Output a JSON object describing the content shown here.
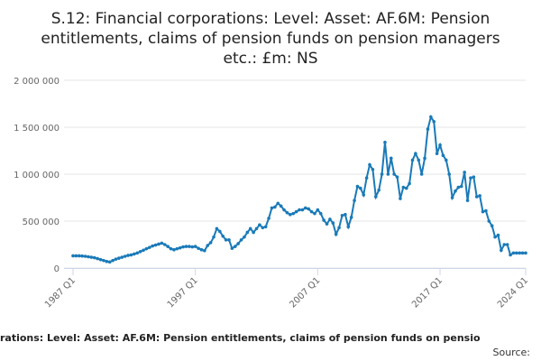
{
  "chart_data": {
    "type": "line",
    "title": [
      "S.12: Financial corporations: Level: Asset: AF.6M: Pension",
      "entitlements, claims of pension funds on pension managers",
      "etc.: £m: NS"
    ],
    "caption": "rations: Level: Asset: AF.6M: Pension entitlements, claims of pension funds on pensio",
    "source": "Source:",
    "categories": [
      "1987 Q1",
      null,
      null,
      null,
      null,
      null,
      null,
      null,
      null,
      null,
      null,
      null,
      null,
      null,
      null,
      null,
      null,
      null,
      null,
      null,
      null,
      null,
      null,
      null,
      null,
      null,
      null,
      null,
      null,
      null,
      null,
      null,
      null,
      null,
      null,
      null,
      null,
      null,
      null,
      null,
      "1997 Q1",
      null,
      null,
      null,
      null,
      null,
      null,
      null,
      null,
      null,
      null,
      null,
      null,
      null,
      null,
      null,
      null,
      null,
      null,
      null,
      null,
      null,
      null,
      null,
      null,
      null,
      null,
      null,
      null,
      null,
      null,
      null,
      null,
      null,
      null,
      null,
      null,
      null,
      null,
      null,
      "2007 Q1",
      null,
      null,
      null,
      null,
      null,
      null,
      null,
      null,
      null,
      null,
      null,
      null,
      null,
      null,
      null,
      null,
      null,
      null,
      null,
      null,
      null,
      null,
      null,
      null,
      null,
      null,
      null,
      null,
      null,
      null,
      null,
      null,
      null,
      null,
      null,
      null,
      null,
      null,
      null,
      "2017 Q1",
      null,
      null,
      null,
      null,
      null,
      null,
      null,
      null,
      null,
      null,
      null,
      null,
      null,
      null,
      null,
      null,
      null,
      null,
      null,
      null,
      null,
      null,
      null,
      null,
      null,
      null,
      null,
      "2024 Q1"
    ],
    "series": [
      {
        "color": "#1a7ab8",
        "values": [
          130000,
          130000,
          130000,
          128000,
          125000,
          120000,
          115000,
          110000,
          100000,
          90000,
          80000,
          70000,
          65000,
          80000,
          95000,
          105000,
          115000,
          125000,
          135000,
          140000,
          150000,
          160000,
          175000,
          190000,
          205000,
          220000,
          235000,
          245000,
          255000,
          265000,
          250000,
          230000,
          205000,
          195000,
          205000,
          215000,
          225000,
          230000,
          230000,
          225000,
          230000,
          210000,
          195000,
          185000,
          240000,
          270000,
          330000,
          420000,
          390000,
          340000,
          300000,
          300000,
          210000,
          230000,
          260000,
          300000,
          330000,
          380000,
          420000,
          380000,
          420000,
          460000,
          430000,
          440000,
          530000,
          640000,
          650000,
          690000,
          660000,
          620000,
          590000,
          570000,
          580000,
          600000,
          620000,
          620000,
          640000,
          630000,
          600000,
          580000,
          620000,
          580000,
          510000,
          470000,
          520000,
          480000,
          360000,
          430000,
          560000,
          570000,
          440000,
          540000,
          720000,
          870000,
          850000,
          780000,
          960000,
          1100000,
          1050000,
          760000,
          830000,
          1000000,
          1340000,
          1000000,
          1170000,
          1000000,
          970000,
          740000,
          860000,
          850000,
          900000,
          1150000,
          1220000,
          1150000,
          1000000,
          1170000,
          1480000,
          1610000,
          1560000,
          1220000,
          1310000,
          1200000,
          1150000,
          1000000,
          750000,
          820000,
          860000,
          870000,
          1020000,
          720000,
          960000,
          970000,
          760000,
          770000,
          600000,
          610000,
          500000,
          450000,
          330000,
          350000,
          190000,
          250000,
          250000,
          140000,
          160000,
          160000,
          160000,
          160000,
          160000
        ]
      }
    ],
    "ylim": [
      0,
      2000000
    ],
    "yticks": [
      0,
      {
        "value": 500000,
        "label": "500 000"
      },
      {
        "value": 1000000,
        "label": "1 000 000"
      },
      {
        "value": 1500000,
        "label": "1 500 000"
      },
      {
        "value": 2000000,
        "label": "2 000 000"
      }
    ],
    "grid": true
  }
}
